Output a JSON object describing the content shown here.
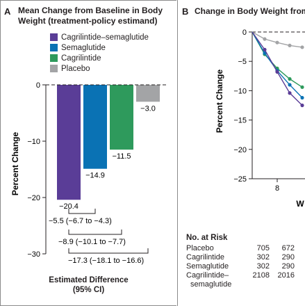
{
  "panel_a": {
    "letter": "A",
    "title_line1": "Mean Change from Baseline in Body",
    "title_line2": "Weight (treatment-policy estimand)",
    "legend": [
      {
        "label": "Cagrilintide–semaglutide",
        "color": "#5a3d97"
      },
      {
        "label": "Semaglutide",
        "color": "#0a72b4"
      },
      {
        "label": "Cagrilintide",
        "color": "#2e9a5c"
      },
      {
        "label": "Placebo",
        "color": "#a3a4a6"
      }
    ],
    "estimated_difference_line1": "Estimated Difference",
    "estimated_difference_line2": "(95% CI)"
  },
  "panel_b": {
    "letter": "B",
    "title": "Change in Body Weight from"
  },
  "risk_table": {
    "title": "No. at Risk",
    "rows": [
      {
        "label": "Placebo",
        "values": [
          "705",
          "672"
        ]
      },
      {
        "label": "Cagrilintide",
        "values": [
          "302",
          "290"
        ]
      },
      {
        "label": "Semaglutide",
        "values": [
          "302",
          "290"
        ]
      },
      {
        "label": "Cagrilintide–",
        "label2": "semaglutide",
        "values": [
          "2108",
          "2016"
        ],
        "extra": "1"
      }
    ]
  },
  "chart_data": [
    {
      "type": "bar",
      "categories": [
        "Cagrilintide–semaglutide",
        "Semaglutide",
        "Cagrilintide",
        "Placebo"
      ],
      "values": [
        -20.4,
        -14.9,
        -11.5,
        -3.0
      ],
      "value_labels": [
        "−20.4",
        "−14.9",
        "−11.5",
        "−3.0"
      ],
      "colors": [
        "#5a3d97",
        "#0a72b4",
        "#2e9a5c",
        "#a3a4a6"
      ],
      "ylabel": "Percent Change",
      "ylim": [
        -30,
        0
      ],
      "yticks": [
        0,
        -10,
        -20,
        -30
      ],
      "ytick_labels": [
        "0",
        "−10",
        "−20",
        "−30"
      ],
      "differences": [
        {
          "from": 0,
          "to": 1,
          "label": "−5.5 (−6.7 to −4.3)"
        },
        {
          "from": 0,
          "to": 2,
          "label": "−8.9 (−10.1 to −7.7)"
        },
        {
          "from": 0,
          "to": 3,
          "label": "−17.3 (−18.1 to −16.6)"
        }
      ]
    },
    {
      "type": "line",
      "ylabel": "Percent Change",
      "xlabel": "W",
      "ylim": [
        -25,
        0
      ],
      "yticks": [
        0,
        -5,
        -10,
        -15,
        -20,
        -25
      ],
      "ytick_labels": [
        "0",
        "−5",
        "−10",
        "−15",
        "−20",
        "−25"
      ],
      "xticks": [
        8
      ],
      "xtick_labels": [
        "8"
      ],
      "series": [
        {
          "color": "#a3a4a6",
          "x": [
            0,
            4,
            8,
            12,
            16
          ],
          "y": [
            0,
            -1.2,
            -1.8,
            -2.3,
            -2.6
          ]
        },
        {
          "color": "#2e9a5c",
          "x": [
            0,
            4,
            8,
            12,
            16
          ],
          "y": [
            0,
            -3.8,
            -6.2,
            -8.0,
            -9.4
          ]
        },
        {
          "color": "#0a72b4",
          "x": [
            0,
            4,
            8,
            12,
            16
          ],
          "y": [
            0,
            -3.6,
            -6.6,
            -9.0,
            -11.2
          ]
        },
        {
          "color": "#5a3d97",
          "x": [
            0,
            4,
            8,
            12,
            16
          ],
          "y": [
            0,
            -3.0,
            -6.8,
            -10.4,
            -12.5
          ]
        }
      ]
    }
  ]
}
